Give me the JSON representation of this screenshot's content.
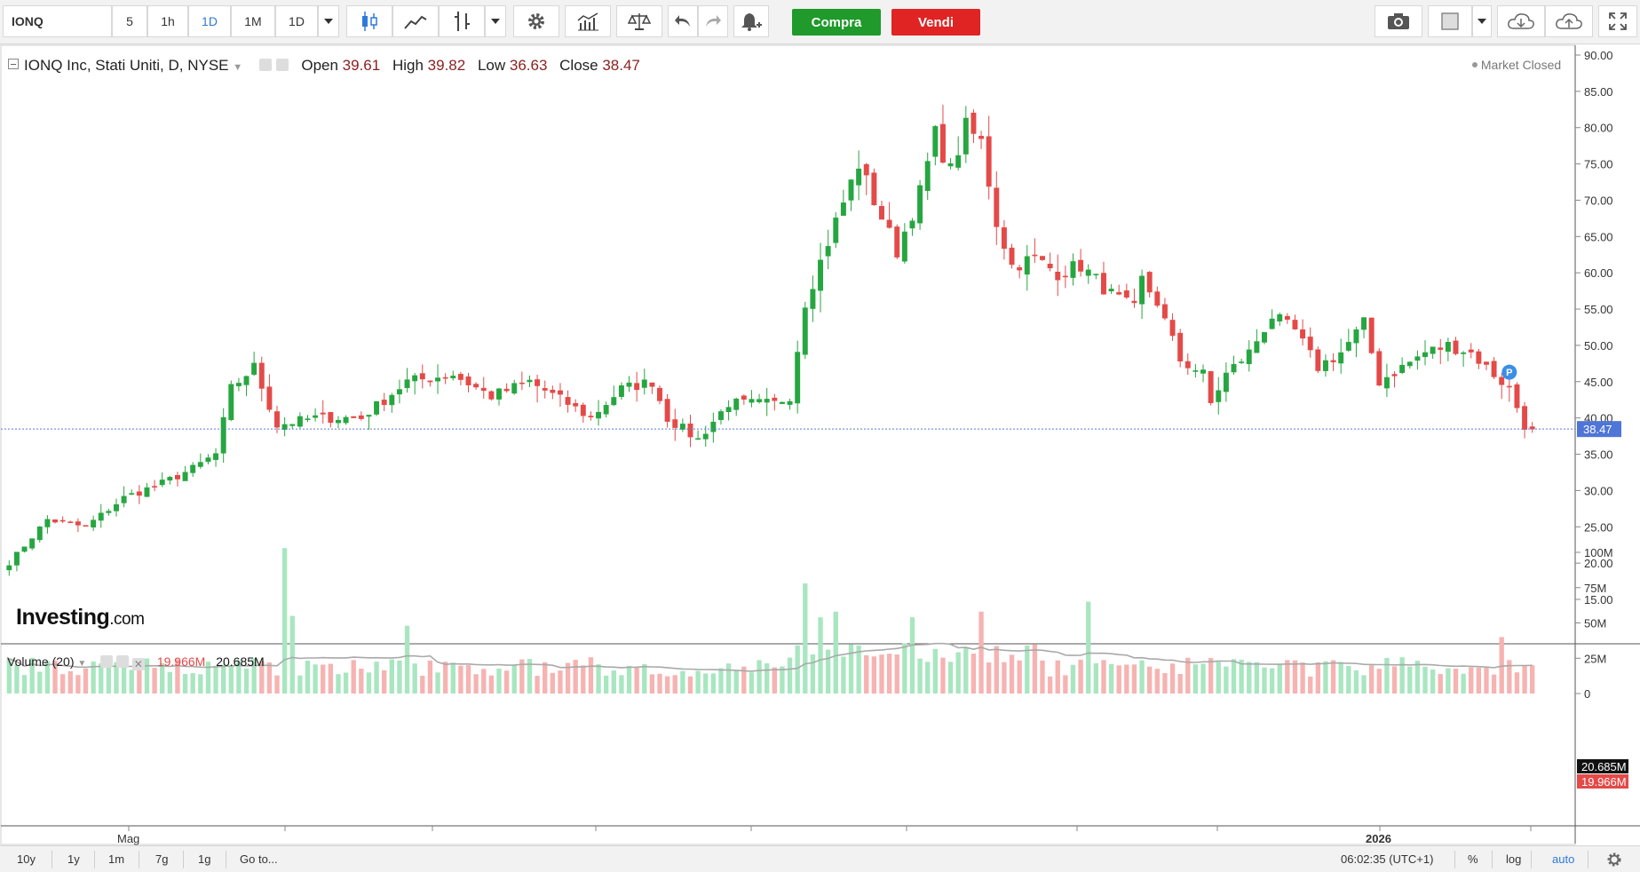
{
  "toolbar": {
    "symbol": "IONQ",
    "intervals": [
      "5",
      "1h",
      "1D",
      "1M",
      "1D"
    ],
    "active_interval": "1D",
    "buy_label": "Compra",
    "sell_label": "Vendi",
    "icons": [
      "candles-icon",
      "line-chart-icon",
      "indicators-icon",
      "dropdown-icon",
      "settings-icon",
      "studies-icon",
      "compare-icon",
      "undo-icon",
      "redo-icon",
      "alert-icon",
      "camera-icon",
      "template-icon",
      "cloud-download-icon",
      "cloud-upload-icon",
      "fullscreen-icon"
    ]
  },
  "legend": {
    "title": "IONQ Inc, Stati Uniti, D, NYSE",
    "open_label": "Open",
    "open": "39.61",
    "high_label": "High",
    "high": "39.82",
    "low_label": "Low",
    "low": "36.63",
    "close_label": "Close",
    "close": "38.47",
    "market_status": "Market Closed",
    "watermark_main": "Investing",
    "watermark_suffix": ".com"
  },
  "volume_legend": {
    "title": "Volume (20)",
    "value1": "19.966M",
    "value2": "20.685M"
  },
  "colors": {
    "up": "#26a640",
    "down": "#e34a48",
    "up_vol": "#a8e6c0",
    "down_vol": "#f6b3b1",
    "ma": "#a9a9a9",
    "price_line": "#5b7bd5",
    "price_badge": "#4f75d6",
    "vol_badge_dark": "#111111",
    "vol_badge_red": "#e34a48"
  },
  "chart_data": {
    "type": "candlestick",
    "price_axis": {
      "ticks": [
        "90.00",
        "85.00",
        "80.00",
        "75.00",
        "70.00",
        "65.00",
        "60.00",
        "55.00",
        "50.00",
        "45.00",
        "40.00",
        "35.00",
        "30.00",
        "25.00",
        "20.00",
        "15.00"
      ],
      "min": 15,
      "max": 90
    },
    "current_price": "38.47",
    "volume_axis": {
      "ticks": [
        "100M",
        "75M",
        "50M",
        "25M",
        "0"
      ],
      "min": 0,
      "max": 100
    },
    "volume_badges": [
      "20.685M",
      "19.966M"
    ],
    "time_labels": [
      "Mag",
      "2026"
    ],
    "anchors_close": [
      [
        0,
        20
      ],
      [
        5,
        26
      ],
      [
        10,
        25
      ],
      [
        15,
        29
      ],
      [
        20,
        31
      ],
      [
        24,
        33
      ],
      [
        27,
        35
      ],
      [
        29,
        44
      ],
      [
        32,
        47
      ],
      [
        35,
        39
      ],
      [
        40,
        40
      ],
      [
        46,
        40
      ],
      [
        52,
        45
      ],
      [
        58,
        46
      ],
      [
        63,
        43
      ],
      [
        68,
        45
      ],
      [
        73,
        42
      ],
      [
        76,
        40
      ],
      [
        80,
        44
      ],
      [
        84,
        45
      ],
      [
        86,
        40
      ],
      [
        90,
        37
      ],
      [
        94,
        42
      ],
      [
        100,
        42
      ],
      [
        102,
        43
      ],
      [
        104,
        56
      ],
      [
        108,
        67
      ],
      [
        111,
        75
      ],
      [
        113,
        70
      ],
      [
        116,
        63
      ],
      [
        119,
        71
      ],
      [
        121,
        79
      ],
      [
        123,
        74
      ],
      [
        125,
        80
      ],
      [
        127,
        78
      ],
      [
        129,
        67
      ],
      [
        131,
        61
      ],
      [
        134,
        62
      ],
      [
        137,
        60
      ],
      [
        140,
        61
      ],
      [
        144,
        57
      ],
      [
        147,
        55
      ],
      [
        148,
        59
      ],
      [
        150,
        56
      ],
      [
        153,
        48
      ],
      [
        156,
        46
      ],
      [
        157,
        42
      ],
      [
        159,
        46
      ],
      [
        162,
        49
      ],
      [
        165,
        54
      ],
      [
        168,
        52
      ],
      [
        171,
        47
      ],
      [
        174,
        49
      ],
      [
        177,
        53
      ],
      [
        179,
        45
      ],
      [
        182,
        47
      ],
      [
        185,
        49
      ],
      [
        188,
        50
      ],
      [
        191,
        49
      ],
      [
        193,
        47
      ],
      [
        196,
        44
      ],
      [
        198,
        39
      ],
      [
        199,
        38.47
      ]
    ],
    "volume_pattern": "moderate 12-25M bars, spikes near 103M (late Apr), 68M (Oct), 65M (Nov)",
    "ma_line": "20-period volume moving average"
  },
  "bottombar": {
    "ranges": [
      "10y",
      "1y",
      "1m",
      "7g",
      "1g"
    ],
    "goto": "Go to...",
    "clock": "06:02:35 (UTC+1)",
    "percent": "%",
    "log": "log",
    "auto": "auto"
  }
}
